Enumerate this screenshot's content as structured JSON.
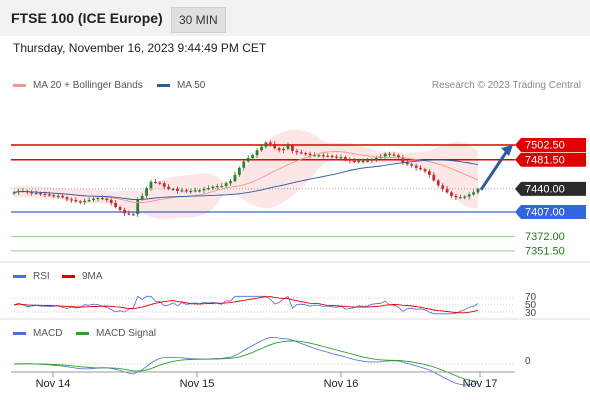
{
  "header": {
    "title": "FTSE 100 (ICE Europe)",
    "timeframe": "30 MIN"
  },
  "timestamp": "Thursday, November 16, 2023 9:44:49 PM CET",
  "legend": [
    {
      "label": "MA 20 + Bollinger Bands",
      "color": "#f2948f"
    },
    {
      "label": "MA 50",
      "color": "#2e5aa0"
    }
  ],
  "credit": "Research © 2023 Trading Central",
  "colors": {
    "up": "#2e7d32",
    "down": "#c62828",
    "resistance": "#e00000",
    "support": "#3366dd",
    "target": "#2ca02c",
    "arrow": "#2e5aa0"
  },
  "price_levels": [
    {
      "label": "7502.50",
      "value": 7502.5,
      "kind": "resistance"
    },
    {
      "label": "7481.50",
      "value": 7481.5,
      "kind": "resistance"
    },
    {
      "label": "7440.00",
      "value": 7440.0,
      "kind": "last"
    },
    {
      "label": "7407.00",
      "value": 7407.0,
      "kind": "support"
    },
    {
      "label": "7372.00",
      "value": 7372.0,
      "kind": "target"
    },
    {
      "label": "7351.50",
      "value": 7351.5,
      "kind": "target"
    }
  ],
  "rsi_panel": {
    "legend": [
      {
        "label": "RSI",
        "color": "#4a6fd8"
      },
      {
        "label": "9MA",
        "color": "#e00000"
      }
    ],
    "levels": [
      "70",
      "50",
      "30"
    ]
  },
  "macd_panel": {
    "legend": [
      {
        "label": "MACD",
        "color": "#4a6fd8"
      },
      {
        "label": "MACD Signal",
        "color": "#2ca02c"
      }
    ],
    "zero_label": "0"
  },
  "x_axis": {
    "labels": [
      "Nov 14",
      "Nov 15",
      "Nov 16",
      "Nov 17"
    ]
  },
  "chart_data": {
    "type": "candlestick",
    "instrument": "FTSE 100 (ICE Europe)",
    "interval": "30 MIN",
    "x_ticks": [
      "Nov 14",
      "Nov 15",
      "Nov 16",
      "Nov 17"
    ],
    "y_range_approx": [
      7395,
      7520
    ],
    "horizontal_levels": [
      7502.5,
      7481.5,
      7440.0,
      7407.0,
      7372.0,
      7351.5
    ],
    "last_price": 7440.0,
    "close_series": [
      7435,
      7437,
      7437,
      7435,
      7434,
      7434,
      7433,
      7432,
      7431,
      7430,
      7430,
      7428,
      7425,
      7424,
      7422,
      7421,
      7423,
      7424,
      7426,
      7427,
      7426,
      7424,
      7420,
      7414,
      7410,
      7405,
      7404,
      7404,
      7425,
      7430,
      7441,
      7450,
      7449,
      7448,
      7443,
      7440,
      7440,
      7437,
      7438,
      7437,
      7437,
      7438,
      7438,
      7440,
      7441,
      7443,
      7444,
      7444,
      7448,
      7451,
      7460,
      7470,
      7479,
      7484,
      7488,
      7495,
      7500,
      7506,
      7504,
      7498,
      7495,
      7497,
      7502,
      7494,
      7492,
      7491,
      7490,
      7488,
      7488,
      7488,
      7487,
      7487,
      7486,
      7485,
      7485,
      7482,
      7480,
      7479,
      7480,
      7480,
      7480,
      7482,
      7484,
      7486,
      7490,
      7489,
      7488,
      7485,
      7478,
      7475,
      7473,
      7470,
      7468,
      7465,
      7460,
      7452,
      7445,
      7440,
      7435,
      7430,
      7428,
      7428,
      7429,
      7432,
      7435,
      7440
    ]
  }
}
